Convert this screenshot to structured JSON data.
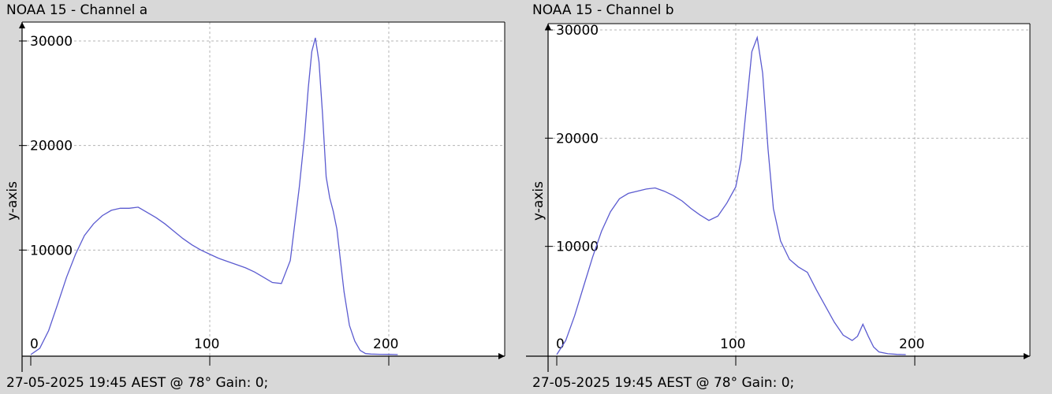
{
  "charts": [
    {
      "title": "NOAA 15 - Channel a",
      "footer": "27-05-2025 19:45 AEST @ 78° Gain: 0;",
      "color": "#5b5bd0"
    },
    {
      "title": "NOAA 15 - Channel b",
      "footer": "27-05-2025 19:45 AEST @ 78° Gain: 0;",
      "color": "#5b5bd0"
    }
  ],
  "chart_data": [
    {
      "type": "line",
      "title": "NOAA 15 - Channel a",
      "xlabel": "",
      "ylabel": "y-axis",
      "xlim": [
        0,
        255
      ],
      "ylim": [
        0,
        30000
      ],
      "xticks": [
        0,
        100,
        200
      ],
      "yticks": [
        0,
        10000,
        20000,
        30000
      ],
      "grid": true,
      "series": [
        {
          "x": [
            0,
            5,
            10,
            15,
            20,
            25,
            30,
            35,
            40,
            45,
            50,
            55,
            60,
            65,
            70,
            75,
            80,
            85,
            90,
            95,
            100,
            105,
            110,
            115,
            120,
            125,
            130,
            135,
            140,
            145,
            150,
            153,
            155,
            157,
            159,
            161,
            163,
            165,
            167,
            169,
            171,
            173,
            175,
            178,
            181,
            184,
            187,
            190,
            195,
            200,
            205
          ],
          "y": [
            0,
            600,
            2300,
            4800,
            7400,
            9600,
            11400,
            12500,
            13300,
            13800,
            14000,
            14000,
            14100,
            13600,
            13100,
            12500,
            11800,
            11100,
            10500,
            10000,
            9600,
            9200,
            8900,
            8600,
            8300,
            7900,
            7400,
            6900,
            6800,
            9000,
            16000,
            21000,
            25500,
            29000,
            30300,
            28000,
            23000,
            17000,
            15000,
            13700,
            12000,
            9000,
            6000,
            2800,
            1300,
            400,
            100,
            50,
            30,
            20,
            0
          ]
        }
      ]
    },
    {
      "type": "line",
      "title": "NOAA 15 - Channel b",
      "xlabel": "",
      "ylabel": "y-axis",
      "xlim": [
        0,
        255
      ],
      "ylim": [
        0,
        30000
      ],
      "xticks": [
        0,
        100,
        200
      ],
      "yticks": [
        0,
        10000,
        20000,
        30000
      ],
      "grid": true,
      "series": [
        {
          "x": [
            0,
            5,
            10,
            15,
            20,
            25,
            30,
            35,
            40,
            45,
            50,
            55,
            60,
            65,
            70,
            75,
            80,
            85,
            90,
            95,
            100,
            103,
            106,
            109,
            112,
            115,
            118,
            121,
            125,
            130,
            135,
            140,
            145,
            150,
            155,
            160,
            165,
            168,
            171,
            174,
            177,
            180,
            185,
            190,
            195
          ],
          "y": [
            0,
            1300,
            3600,
            6300,
            9000,
            11400,
            13200,
            14400,
            14900,
            15100,
            15300,
            15400,
            15100,
            14700,
            14200,
            13500,
            12900,
            12400,
            12800,
            14000,
            15500,
            18000,
            23000,
            28000,
            29300,
            26000,
            19000,
            13500,
            10500,
            8800,
            8100,
            7600,
            6000,
            4500,
            3000,
            1800,
            1300,
            1700,
            2800,
            1700,
            700,
            250,
            80,
            20,
            0
          ]
        }
      ]
    }
  ]
}
